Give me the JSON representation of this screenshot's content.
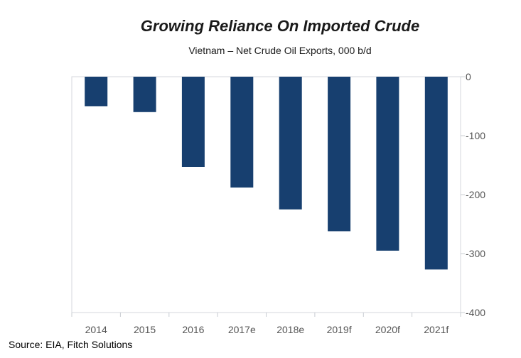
{
  "chart_data": {
    "type": "bar",
    "title": "Growing Reliance On Imported Crude",
    "subtitle": "Vietnam – Net Crude Oil Exports, 000 b/d",
    "categories": [
      "2014",
      "2015",
      "2016",
      "2017e",
      "2018e",
      "2019f",
      "2020f",
      "2021f"
    ],
    "values": [
      -50,
      -60,
      -153,
      -188,
      -225,
      -262,
      -295,
      -327
    ],
    "ylim": [
      -400,
      0
    ],
    "yticks": [
      0,
      -100,
      -200,
      -300,
      -400
    ],
    "ytick_labels": [
      "0",
      "-100",
      "-200",
      "-300",
      "-400"
    ],
    "xlabel": "",
    "ylabel": "",
    "grid": false,
    "legend": "none",
    "y_axis_side": "right",
    "bar_color": "#173f6f"
  },
  "source": "Source: EIA, Fitch Solutions"
}
